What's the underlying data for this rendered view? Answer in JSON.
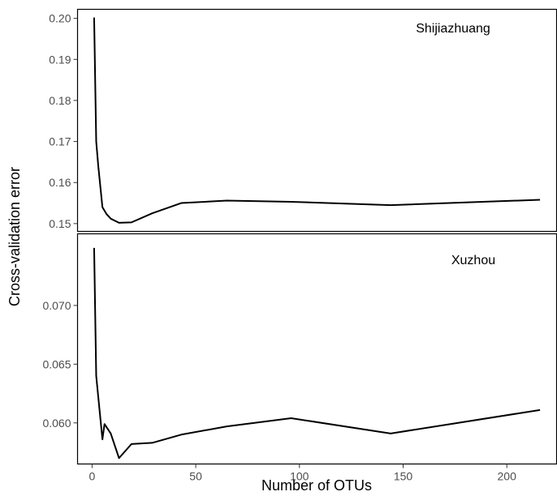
{
  "chart_data": {
    "type": "line",
    "xlabel": "Number of OTUs",
    "ylabel": "Cross-validation error",
    "xlim": [
      -7,
      224
    ],
    "x_ticks": [
      0,
      50,
      100,
      150,
      200
    ],
    "x_tick_labels": [
      "0",
      "50",
      "100",
      "150",
      "200"
    ],
    "grid": false,
    "line_color": "#000000",
    "panels": [
      {
        "label": "Shijiazhuang",
        "ylim": [
          0.1481,
          0.2022
        ],
        "y_ticks": [
          0.15,
          0.16,
          0.17,
          0.18,
          0.19,
          0.2
        ],
        "y_tick_labels": [
          "0.15",
          "0.16",
          "0.17",
          "0.18",
          "0.19",
          "0.20"
        ],
        "x": [
          1,
          2,
          3,
          5,
          7,
          9,
          13,
          19,
          29,
          43,
          65,
          96,
          144,
          216
        ],
        "y": [
          0.2002,
          0.17,
          0.164,
          0.154,
          0.1523,
          0.1512,
          0.1502,
          0.1503,
          0.1525,
          0.155,
          0.1556,
          0.1553,
          0.1545,
          0.1558
        ]
      },
      {
        "label": "Xuzhou",
        "ylim": [
          0.0565,
          0.0761
        ],
        "y_ticks": [
          0.06,
          0.065,
          0.07
        ],
        "y_tick_labels": [
          "0.060",
          "0.065",
          "0.070"
        ],
        "x": [
          1,
          2,
          3,
          5,
          6,
          9,
          13,
          19,
          29,
          43,
          65,
          96,
          144,
          216
        ],
        "y": [
          0.0749,
          0.064,
          0.0622,
          0.0586,
          0.0599,
          0.0591,
          0.057,
          0.0582,
          0.0583,
          0.059,
          0.0597,
          0.0604,
          0.0591,
          0.0611
        ]
      }
    ]
  }
}
